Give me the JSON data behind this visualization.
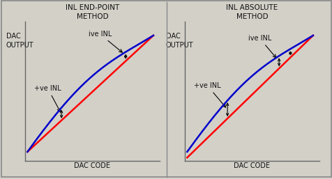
{
  "bg_color": "#d3d0c8",
  "title1": "INL END-POINT\nMETHOD",
  "title2": "INL ABSOLUTE\nMETHOD",
  "ylabel": "DAC\nOUTPUT",
  "xlabel": "DAC CODE",
  "label_ive": "ive INL",
  "label_pve": "+ve INL",
  "line_red": "#ff0000",
  "line_blue": "#0000cc",
  "text_color": "#111111",
  "font_size": 7,
  "title_font_size": 7.5
}
